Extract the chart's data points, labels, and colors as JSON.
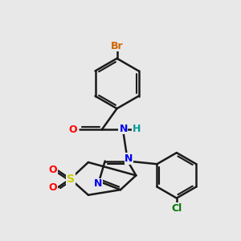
{
  "background_color": "#e8e8e8",
  "bond_color": "#1a1a1a",
  "bond_width": 1.8,
  "atom_labels": {
    "Br": {
      "color": "#cc6600"
    },
    "O": {
      "color": "#ff0000"
    },
    "N": {
      "color": "#0000ee"
    },
    "H": {
      "color": "#009999"
    },
    "S": {
      "color": "#cccc00"
    },
    "Cl": {
      "color": "#007700"
    }
  },
  "figsize": [
    3.0,
    3.0
  ],
  "dpi": 100
}
